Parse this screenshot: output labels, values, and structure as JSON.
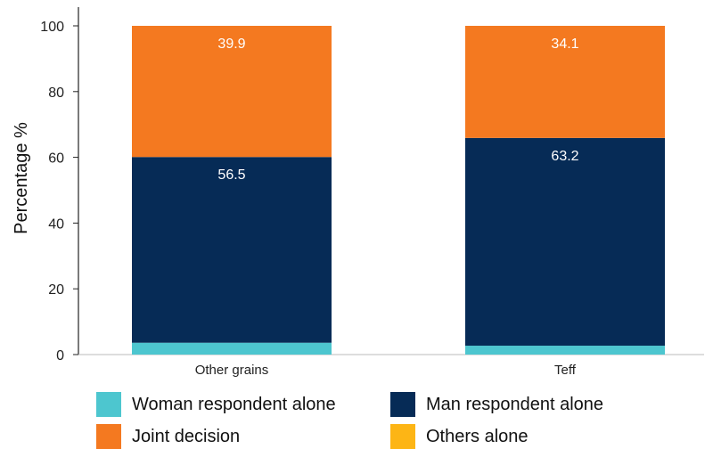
{
  "chart_data": {
    "type": "bar",
    "stacked": true,
    "categories": [
      "Other grains",
      "Teff"
    ],
    "series": [
      {
        "name": "Woman respondent alone",
        "color": "#4dc6cf",
        "values": [
          3.6,
          2.7
        ]
      },
      {
        "name": "Man respondent alone",
        "color": "#062b56",
        "values": [
          56.5,
          63.2
        ]
      },
      {
        "name": "Joint decision",
        "color": "#f47920",
        "values": [
          39.9,
          34.1
        ]
      },
      {
        "name": "Others alone",
        "color": "#fdb515",
        "values": [
          0.0,
          0.0
        ]
      }
    ],
    "data_labels": [
      {
        "category": "Other grains",
        "series": "Joint decision",
        "text": "39.9"
      },
      {
        "category": "Other grains",
        "series": "Man respondent alone",
        "text": "56.5"
      },
      {
        "category": "Teff",
        "series": "Joint decision",
        "text": "34.1"
      },
      {
        "category": "Teff",
        "series": "Man respondent alone",
        "text": "63.2"
      }
    ],
    "ylabel": "Percentage %",
    "xlabel": "",
    "ylim": [
      0,
      100
    ],
    "yticks": [
      0,
      20,
      40,
      60,
      80,
      100
    ],
    "grid": false,
    "legend_position": "bottom"
  }
}
